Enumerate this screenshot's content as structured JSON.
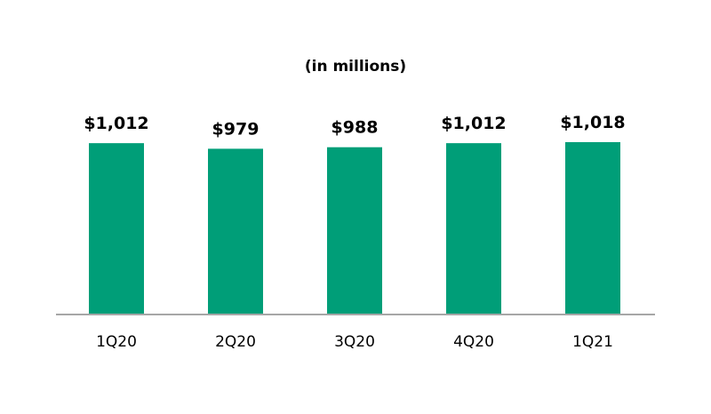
{
  "chart_data": {
    "type": "bar",
    "title": "",
    "subtitle": "(in millions)",
    "xlabel": "",
    "ylabel": "",
    "categories": [
      "1Q20",
      "2Q20",
      "3Q20",
      "4Q20",
      "1Q21"
    ],
    "values": [
      1012,
      979,
      988,
      1012,
      1018
    ],
    "value_labels": [
      "$1,012",
      "$979",
      "$988",
      "$1,012",
      "$1,018"
    ],
    "ylim": [
      0,
      1018
    ],
    "grid": false,
    "legend": "none",
    "colors": {
      "bar": "#009E78",
      "axis": "#A6A6A6",
      "text": "#000000"
    }
  }
}
